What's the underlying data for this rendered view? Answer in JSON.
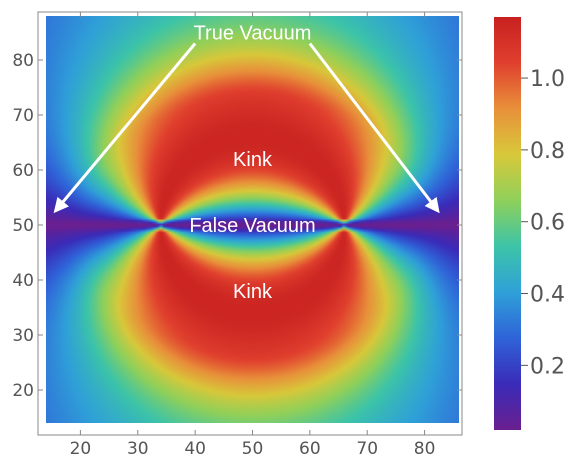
{
  "chart_data": {
    "type": "heatmap",
    "title": "",
    "xlabel": "",
    "ylabel": "",
    "xlim": [
      14,
      86
    ],
    "ylim": [
      14,
      88
    ],
    "x_ticks": [
      "20",
      "30",
      "40",
      "50",
      "60",
      "70",
      "80"
    ],
    "y_ticks": [
      "20",
      "30",
      "40",
      "50",
      "60",
      "70",
      "80"
    ],
    "field": {
      "description_of_structure": "Two kink shells forming a lens between x=34 and x=66 at y=50",
      "center": [
        50,
        50
      ],
      "wall_endpoints_x": [
        34,
        66
      ],
      "max_value": 1.15,
      "min_value": 0.02
    },
    "colorbar": {
      "ticks": [
        "0.2",
        "0.4",
        "0.6",
        "0.8",
        "1.0"
      ],
      "range": [
        0.02,
        1.17
      ],
      "colors": [
        "#6a1f8f",
        "#3a2bb8",
        "#2f63d8",
        "#2fa0d8",
        "#3cc4a8",
        "#8fd05a",
        "#d8c83a",
        "#e8903a",
        "#e0402e",
        "#c82020"
      ]
    },
    "annotations": [
      {
        "text": "True Vacuum",
        "x": 50,
        "y": 85
      },
      {
        "text": "Kink",
        "x": 50,
        "y": 62
      },
      {
        "text": "False Vacuum",
        "x": 50,
        "y": 50
      },
      {
        "text": "Kink",
        "x": 50,
        "y": 38
      }
    ],
    "arrows": [
      {
        "from": [
          40,
          83
        ],
        "to": [
          16,
          53
        ]
      },
      {
        "from": [
          60,
          83
        ],
        "to": [
          82,
          53
        ]
      }
    ]
  }
}
